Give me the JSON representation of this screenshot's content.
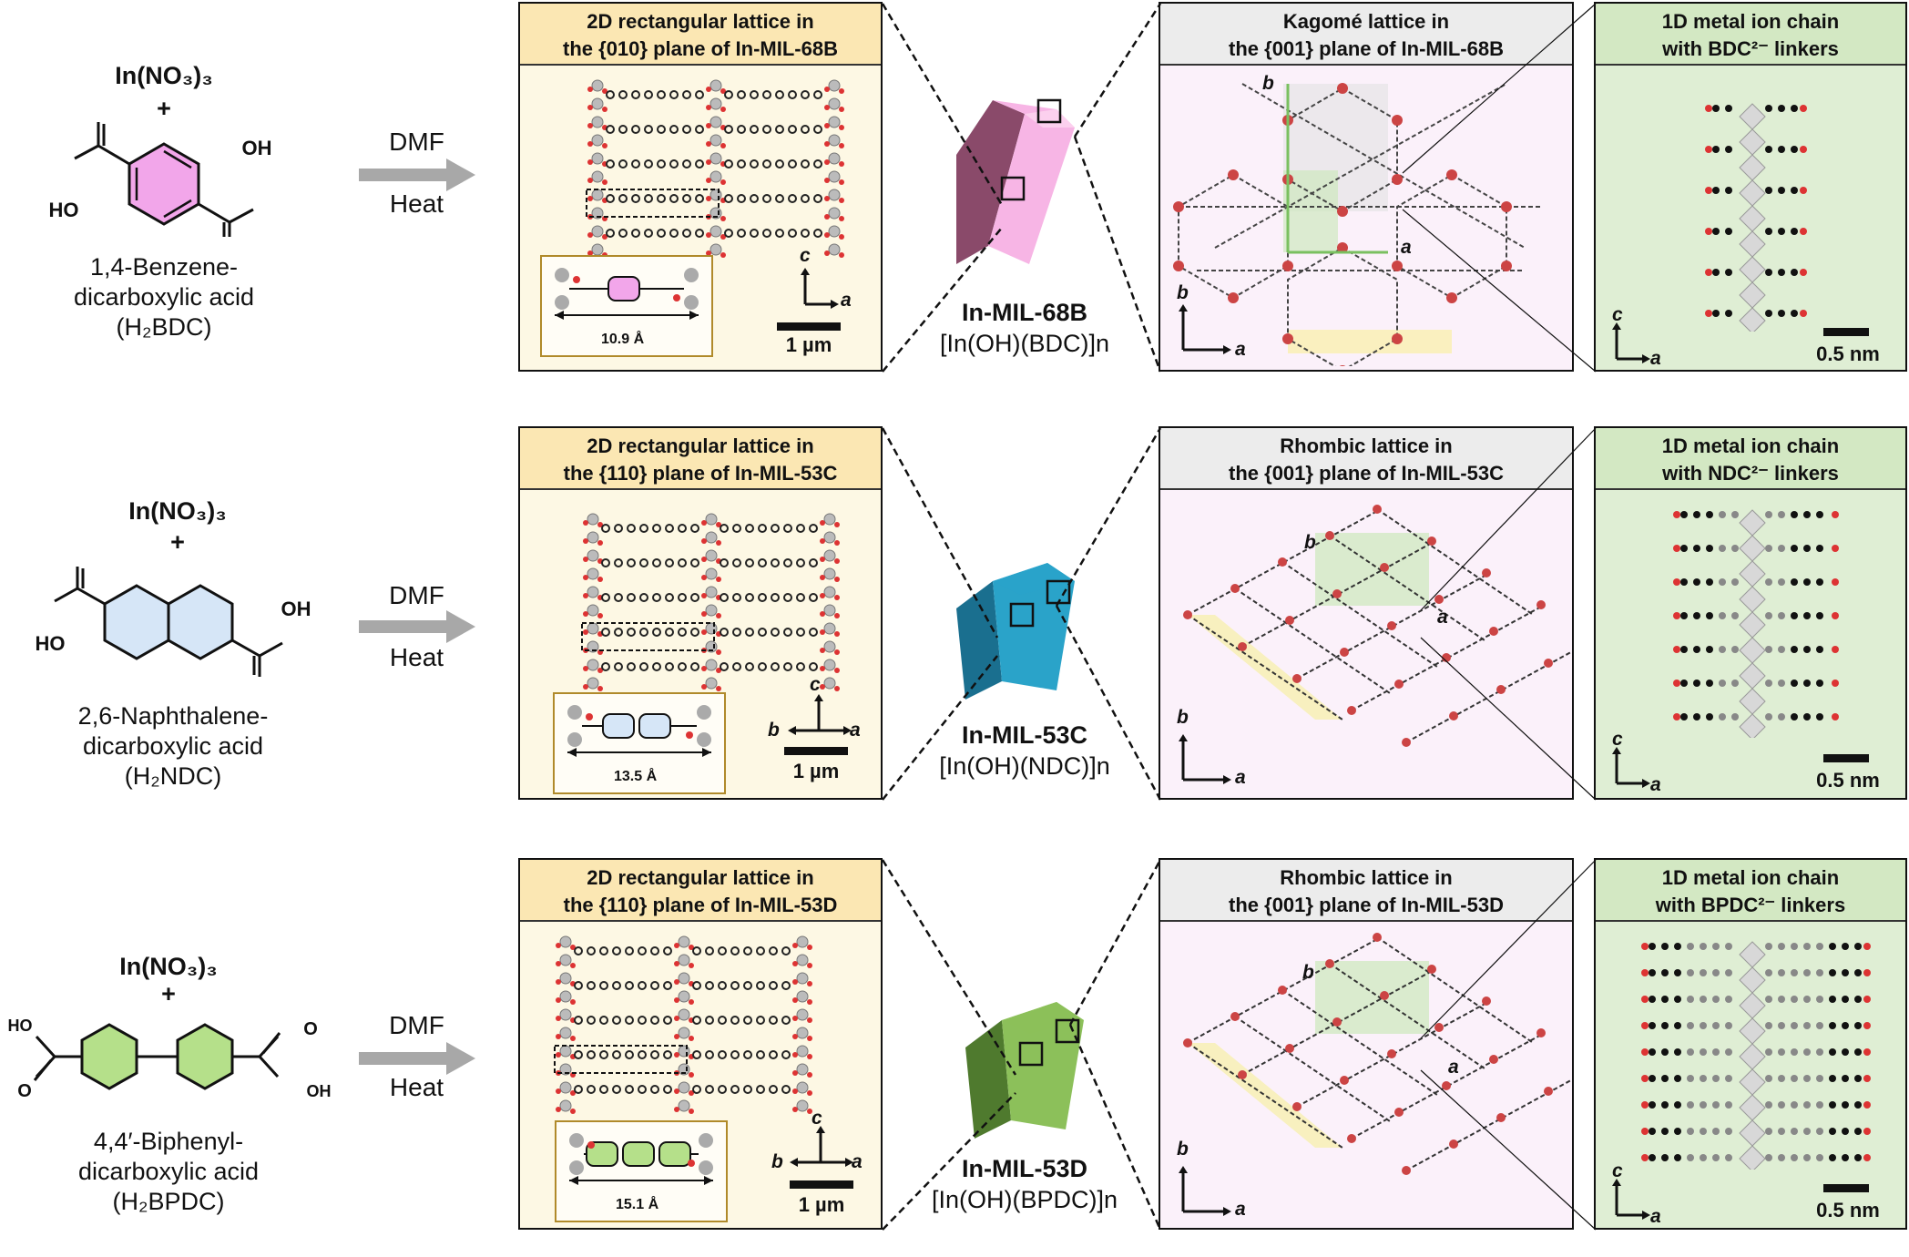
{
  "rows": [
    {
      "reagent": "In(NO₃)₃",
      "plus": "+",
      "acid_name_line1": "1,4-Benzene-",
      "acid_name_line2": "dicarboxylic acid",
      "acid_abbrev": "(H₂BDC)",
      "conditions_top": "DMF",
      "conditions_bottom": "Heat",
      "lattice_title_line1": "2D rectangular lattice in",
      "lattice_title_line2": "the {010} plane of In-MIL-68B",
      "linker_length": "10.9 Å",
      "scale_lattice": "1 µm",
      "crystal_name": "In-MIL-68B",
      "crystal_formula": "[In(OH)(BDC)]n",
      "plane_title_line1": "Kagomé lattice in",
      "plane_title_line2": "the {001} plane of In-MIL-68B",
      "chain_title_line1": "1D metal ion chain",
      "chain_title_line2": "with BDC²⁻ linkers",
      "scale_chain": "0.5 nm",
      "ring_color": "#f2a6ea",
      "crystal_color": "#f7b5e5",
      "crystal_dark": "#8a4a6a"
    },
    {
      "reagent": "In(NO₃)₃",
      "plus": "+",
      "acid_name_line1": "2,6-Naphthalene-",
      "acid_name_line2": "dicarboxylic acid",
      "acid_abbrev": "(H₂NDC)",
      "conditions_top": "DMF",
      "conditions_bottom": "Heat",
      "lattice_title_line1": "2D rectangular lattice in",
      "lattice_title_line2": "the {110} plane of In-MIL-53C",
      "linker_length": "13.5 Å",
      "scale_lattice": "1 µm",
      "crystal_name": "In-MIL-53C",
      "crystal_formula": "[In(OH)(NDC)]n",
      "plane_title_line1": "Rhombic lattice in",
      "plane_title_line2": "the {001} plane of In-MIL-53C",
      "chain_title_line1": "1D metal ion chain",
      "chain_title_line2": "with NDC²⁻ linkers",
      "scale_chain": "0.5 nm",
      "ring_color": "#d6e6f7",
      "crystal_color": "#2aa3c9",
      "crystal_dark": "#1a6f8f"
    },
    {
      "reagent": "In(NO₃)₃",
      "plus": "+",
      "acid_name_line1": "4,4′-Biphenyl-",
      "acid_name_line2": "dicarboxylic acid",
      "acid_abbrev": "(H₂BPDC)",
      "conditions_top": "DMF",
      "conditions_bottom": "Heat",
      "lattice_title_line1": "2D rectangular lattice in",
      "lattice_title_line2": "the {110} plane of In-MIL-53D",
      "linker_length": "15.1 Å",
      "scale_lattice": "1 µm",
      "crystal_name": "In-MIL-53D",
      "crystal_formula": "[In(OH)(BPDC)]n",
      "plane_title_line1": "Rhombic lattice in",
      "plane_title_line2": "the {001} plane of In-MIL-53D",
      "chain_title_line1": "1D metal ion chain",
      "chain_title_line2": "with BPDC²⁻ linkers",
      "scale_chain": "0.5 nm",
      "ring_color": "#b5e08a",
      "crystal_color": "#8cc05a",
      "crystal_dark": "#4f7a2e"
    }
  ],
  "labels": {
    "oh": "OH",
    "ho": "HO",
    "o": "O",
    "axis_a": "a",
    "axis_b": "b",
    "axis_c": "c"
  }
}
